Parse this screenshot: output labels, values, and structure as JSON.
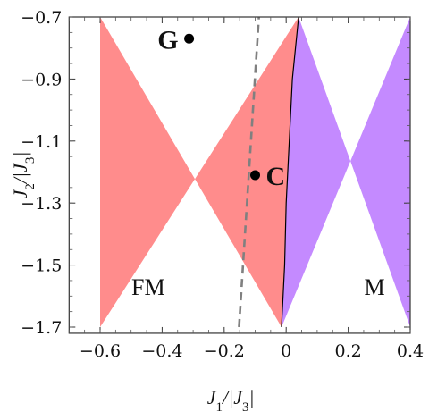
{
  "chart_data": {
    "type": "phase-diagram",
    "xlabel": "J_1/|J_3|",
    "ylabel": "J_2/|J_3|",
    "xlim": [
      -0.6,
      0.4
    ],
    "ylim": [
      -1.7,
      -0.7
    ],
    "plot_range": {
      "x": [
        -0.6,
        0.4
      ],
      "y": [
        -1.7,
        -0.7
      ]
    },
    "frame_range": {
      "x": [
        -0.7,
        0.4
      ],
      "y": [
        -1.72,
        -0.7
      ]
    },
    "x_ticks": [
      -0.6,
      -0.4,
      -0.2,
      0,
      0.2,
      0.4
    ],
    "x_tick_labels": [
      "−0.6",
      "−0.4",
      "−0.2",
      "0",
      "0.2",
      "0.4"
    ],
    "y_ticks": [
      -0.7,
      -0.9,
      -1.1,
      -1.3,
      -1.5,
      -1.7
    ],
    "y_tick_labels": [
      "−0.7",
      "−0.9",
      "−1.1",
      "−1.3",
      "−1.5",
      "−1.7"
    ],
    "grid": false,
    "regions": [
      {
        "label": "FM",
        "color": "#ff8c8c",
        "label_at": {
          "x": -0.445,
          "y": -1.57
        }
      },
      {
        "label": "M",
        "color": "#c48aff",
        "label_at": {
          "x": 0.285,
          "y": -1.57
        }
      }
    ],
    "boundary": {
      "style": "solid",
      "color": "#000000",
      "points": [
        {
          "x": -0.015,
          "y": -1.7
        },
        {
          "x": -0.005,
          "y": -1.5
        },
        {
          "x": 0.0,
          "y": -1.3
        },
        {
          "x": 0.01,
          "y": -1.1
        },
        {
          "x": 0.02,
          "y": -0.9
        },
        {
          "x": 0.04,
          "y": -0.7
        }
      ]
    },
    "dashed_line": {
      "style": "dashed",
      "color": "#808080",
      "points": [
        {
          "x": -0.152,
          "y": -1.7
        },
        {
          "x": -0.088,
          "y": -0.7
        }
      ]
    },
    "points": [
      {
        "label": "G",
        "x": -0.313,
        "y": -0.77
      },
      {
        "label": "C",
        "x": -0.1,
        "y": -1.21
      }
    ]
  }
}
